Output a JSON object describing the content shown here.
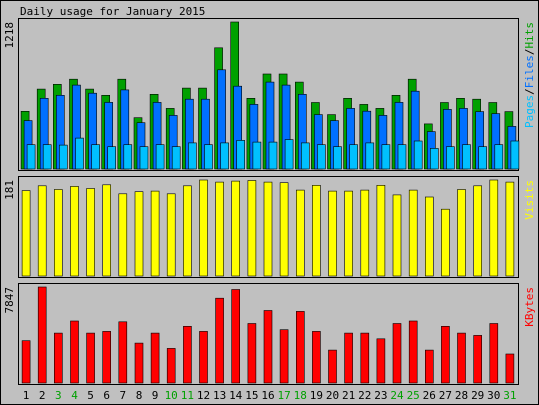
{
  "chart_data": {
    "type": "bar",
    "title": "Daily usage for January 2015",
    "colors": {
      "background": "#c0c0c0",
      "border": "#000000",
      "hits": "#00a000",
      "files": "#0070ff",
      "pages": "#00c0ff",
      "visits": "#ffff00",
      "kbytes": "#ff0000",
      "weekday_label": "#000000",
      "weekend_label": "#00a000"
    },
    "categories": [
      "1",
      "2",
      "3",
      "4",
      "5",
      "6",
      "7",
      "8",
      "9",
      "10",
      "11",
      "12",
      "13",
      "14",
      "15",
      "16",
      "17",
      "18",
      "19",
      "20",
      "21",
      "22",
      "23",
      "24",
      "25",
      "26",
      "27",
      "28",
      "29",
      "30",
      "31"
    ],
    "weekend_days": [
      "3",
      "4",
      "10",
      "11",
      "17",
      "18",
      "24",
      "25",
      "31"
    ],
    "panels": [
      {
        "id": "hits",
        "max_label": "1218",
        "ylim": [
          0,
          1218
        ],
        "legend": [
          {
            "name": "Pages",
            "color": "#00c0ff"
          },
          {
            "name": "/",
            "color": "#000000"
          },
          {
            "name": "Files",
            "color": "#0070ff"
          },
          {
            "name": "/",
            "color": "#000000"
          },
          {
            "name": "Hits",
            "color": "#00a000"
          }
        ],
        "series": [
          {
            "name": "Hits",
            "color": "#00a000",
            "values": [
              478,
              662,
              702,
              744,
              662,
              611,
              744,
              425,
              619,
              502,
              670,
              670,
              1004,
              1218,
              586,
              787,
              787,
              720,
              551,
              451,
              586,
              535,
              502,
              611,
              744,
              374,
              551,
              586,
              578,
              551,
              476
            ]
          },
          {
            "name": "Files",
            "color": "#0070ff",
            "values": [
              401,
              586,
              611,
              695,
              628,
              552,
              655,
              384,
              552,
              444,
              578,
              578,
              822,
              686,
              535,
              720,
              695,
              619,
              451,
              401,
              502,
              479,
              444,
              552,
              645,
              310,
              494,
              502,
              476,
              459,
              353
            ]
          },
          {
            "name": "Pages",
            "color": "#00c0ff",
            "values": [
              201,
              201,
              198,
              256,
              201,
              185,
              201,
              185,
              201,
              185,
              216,
              201,
              216,
              237,
              223,
              223,
              244,
              216,
              201,
              185,
              201,
              216,
              201,
              201,
              232,
              171,
              185,
              201,
              185,
              201,
              232
            ]
          }
        ]
      },
      {
        "id": "visits",
        "max_label": "181",
        "ylim": [
          0,
          181
        ],
        "legend": [
          {
            "name": "Visits",
            "color": "#ffff00"
          }
        ],
        "series": [
          {
            "name": "Visits",
            "color": "#ffff00",
            "values": [
              161,
              170,
              163,
              169,
              165,
              172,
              155,
              159,
              160,
              155,
              170,
              181,
              177,
              179,
              180,
              177,
              176,
              162,
              171,
              160,
              160,
              162,
              171,
              153,
              162,
              149,
              126,
              163,
              170,
              181,
              177
            ]
          }
        ]
      },
      {
        "id": "kbytes",
        "max_label": "7847",
        "ylim": [
          0,
          7847
        ],
        "legend": [
          {
            "name": "KBytes",
            "color": "#ff0000"
          }
        ],
        "series": [
          {
            "name": "KBytes",
            "color": "#ff0000",
            "values": [
              3455,
              7847,
              4077,
              5068,
              4077,
              4218,
              5006,
              3259,
              4077,
              2831,
              4636,
              4218,
              6928,
              7640,
              4867,
              5925,
              4358,
              5853,
              4218,
              2693,
              4077,
              4077,
              3612,
              4867,
              5068,
              2693,
              4636,
              4077,
              3894,
              4867,
              2372
            ]
          }
        ]
      }
    ]
  }
}
